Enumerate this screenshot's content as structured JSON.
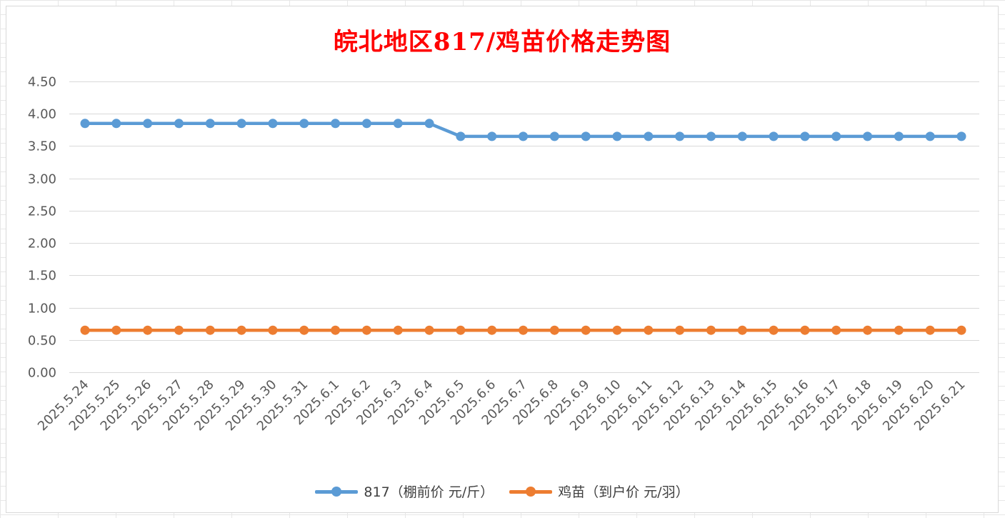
{
  "chart_data": {
    "type": "line",
    "title": "皖北地区817/鸡苗价格走势图",
    "xlabel": "",
    "ylabel": "",
    "ylim": [
      0,
      4.5
    ],
    "yticks": [
      "0.00",
      "0.50",
      "1.00",
      "1.50",
      "2.00",
      "2.50",
      "3.00",
      "3.50",
      "4.00",
      "4.50"
    ],
    "grid": true,
    "legend_position": "bottom",
    "categories": [
      "2025.5.24",
      "2025.5.25",
      "2025.5.26",
      "2025.5.27",
      "2025.5.28",
      "2025.5.29",
      "2025.5.30",
      "2025.5.31",
      "2025.6.1",
      "2025.6.2",
      "2025.6.3",
      "2025.6.4",
      "2025.6.5",
      "2025.6.6",
      "2025.6.7",
      "2025.6.8",
      "2025.6.9",
      "2025.6.10",
      "2025.6.11",
      "2025.6.12",
      "2025.6.13",
      "2025.6.14",
      "2025.6.15",
      "2025.6.16",
      "2025.6.17",
      "2025.6.18",
      "2025.6.19",
      "2025.6.20",
      "2025.6.21"
    ],
    "series": [
      {
        "name": "817（棚前价 元/斤）",
        "color": "#5b9bd5",
        "values": [
          3.85,
          3.85,
          3.85,
          3.85,
          3.85,
          3.85,
          3.85,
          3.85,
          3.85,
          3.85,
          3.85,
          3.85,
          3.65,
          3.65,
          3.65,
          3.65,
          3.65,
          3.65,
          3.65,
          3.65,
          3.65,
          3.65,
          3.65,
          3.65,
          3.65,
          3.65,
          3.65,
          3.65,
          3.65
        ]
      },
      {
        "name": "鸡苗（到户价 元/羽）",
        "color": "#ed7d31",
        "values": [
          0.65,
          0.65,
          0.65,
          0.65,
          0.65,
          0.65,
          0.65,
          0.65,
          0.65,
          0.65,
          0.65,
          0.65,
          0.65,
          0.65,
          0.65,
          0.65,
          0.65,
          0.65,
          0.65,
          0.65,
          0.65,
          0.65,
          0.65,
          0.65,
          0.65,
          0.65,
          0.65,
          0.65,
          0.65
        ]
      }
    ]
  }
}
